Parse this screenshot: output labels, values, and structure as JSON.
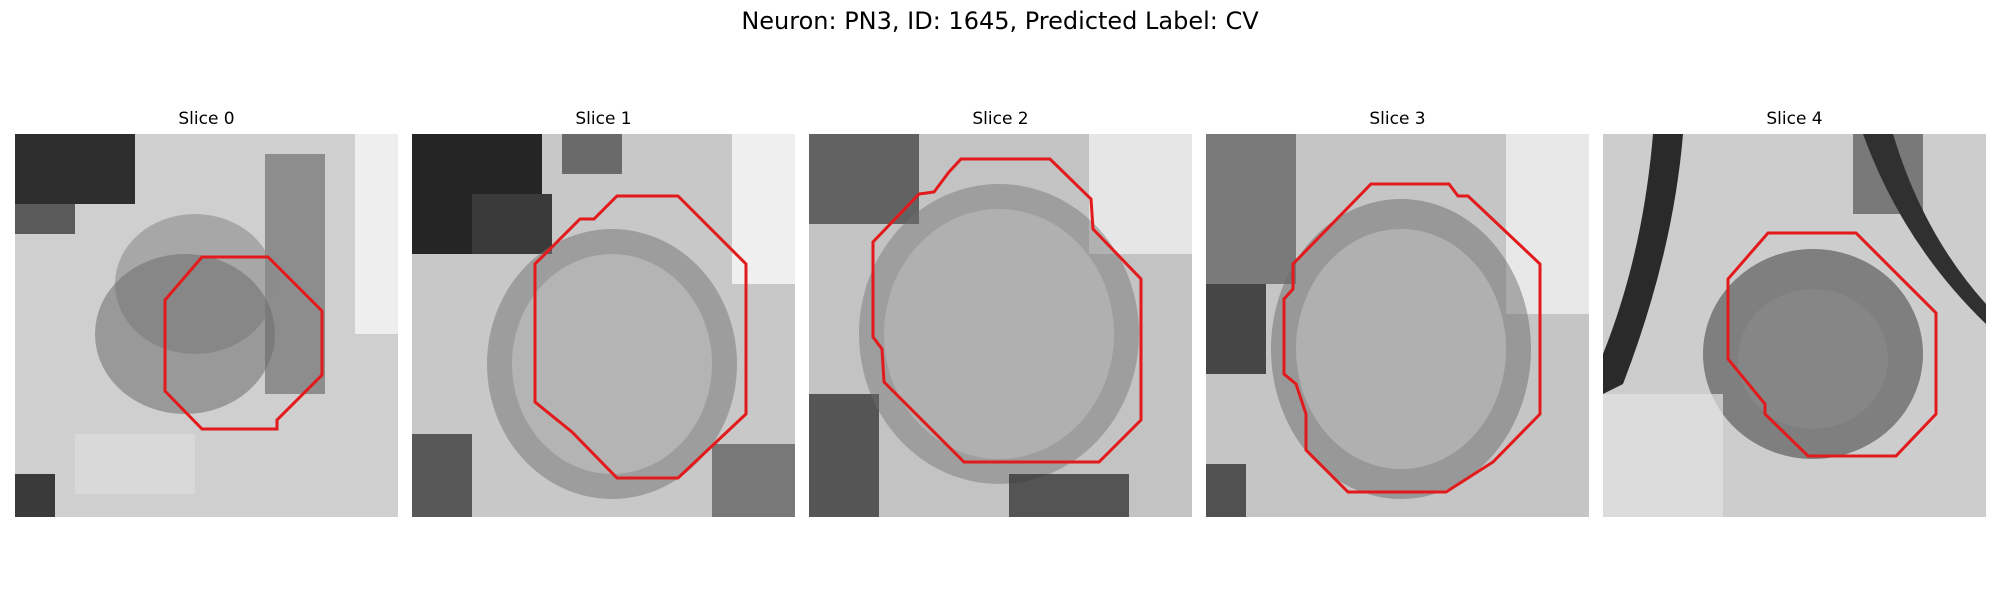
{
  "figure": {
    "title": "Neuron: PN3, ID: 1645, Predicted Label: CV"
  },
  "panels": [
    {
      "title": "Slice 0"
    },
    {
      "title": "Slice 1"
    },
    {
      "title": "Slice 2"
    },
    {
      "title": "Slice 3"
    },
    {
      "title": "Slice 4"
    }
  ],
  "colors": {
    "contour": "#e31a1c",
    "image": "grayscale"
  }
}
